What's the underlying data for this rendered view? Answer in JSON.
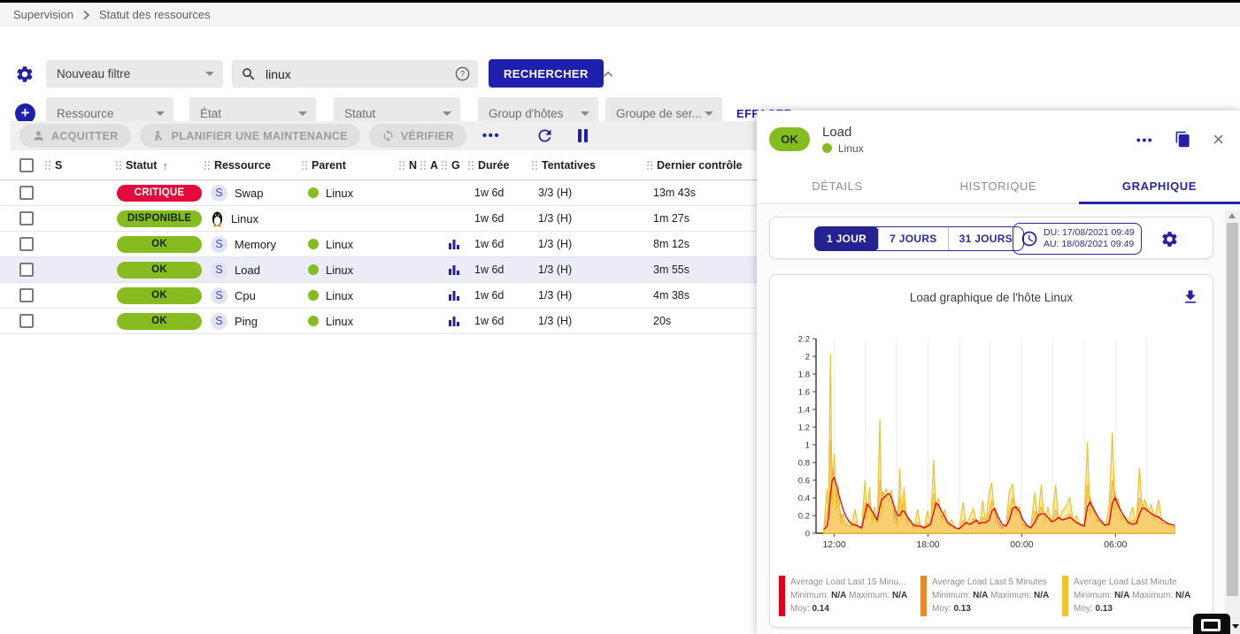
{
  "breadcrumb": {
    "items": [
      "Supervision",
      "Statut des ressources"
    ]
  },
  "filters": {
    "saved_filter_label": "Nouveau filtre",
    "search_value": "linux",
    "search_button": "RECHERCHER",
    "criteria": [
      "Ressource",
      "État",
      "Statut",
      "Group d'hôtes",
      "Groupe de ser..."
    ],
    "clear_button": "EFFACER"
  },
  "toolbar": {
    "acknowledge": "ACQUITTER",
    "downtime": "PLANIFIER UNE MAINTENANCE",
    "check": "VÉRIFIER",
    "more_icon": "•••"
  },
  "table": {
    "headers": [
      "S",
      "Statut",
      "Ressource",
      "Parent",
      "N",
      "A",
      "G",
      "Durée",
      "Tentatives",
      "Dernier contrôle"
    ],
    "sorted_column": "Statut",
    "sort_icon": "↑",
    "rows": [
      {
        "status": "CRITIQUE",
        "status_bg": "#e30b3c",
        "status_fg": "#ffffff",
        "icon": "service",
        "resource": "Swap",
        "parent": "Linux",
        "graph": false,
        "duration": "1w 6d",
        "tries": "3/3 (H)",
        "last_check": "13m 43s",
        "selected": false
      },
      {
        "status": "DISPONIBLE",
        "status_bg": "#87bc21",
        "status_fg": "#16230a",
        "icon": "host",
        "resource": "Linux",
        "parent": "",
        "graph": false,
        "duration": "1w 6d",
        "tries": "1/3 (H)",
        "last_check": "1m 27s",
        "selected": false
      },
      {
        "status": "OK",
        "status_bg": "#87bc21",
        "status_fg": "#16230a",
        "icon": "service",
        "resource": "Memory",
        "parent": "Linux",
        "graph": true,
        "duration": "1w 6d",
        "tries": "1/3 (H)",
        "last_check": "8m 12s",
        "selected": false
      },
      {
        "status": "OK",
        "status_bg": "#87bc21",
        "status_fg": "#16230a",
        "icon": "service",
        "resource": "Load",
        "parent": "Linux",
        "graph": true,
        "duration": "1w 6d",
        "tries": "1/3 (H)",
        "last_check": "3m 55s",
        "selected": true
      },
      {
        "status": "OK",
        "status_bg": "#87bc21",
        "status_fg": "#16230a",
        "icon": "service",
        "resource": "Cpu",
        "parent": "Linux",
        "graph": true,
        "duration": "1w 6d",
        "tries": "1/3 (H)",
        "last_check": "4m 38s",
        "selected": false
      },
      {
        "status": "OK",
        "status_bg": "#87bc21",
        "status_fg": "#16230a",
        "icon": "service",
        "resource": "Ping",
        "parent": "Linux",
        "graph": true,
        "duration": "1w 6d",
        "tries": "1/3 (H)",
        "last_check": "20s",
        "selected": false
      }
    ]
  },
  "panel": {
    "status_chip": "OK",
    "title": "Load",
    "subtitle": "Linux",
    "tabs": [
      "DÉTAILS",
      "HISTORIQUE",
      "GRAPHIQUE"
    ],
    "active_tab": 2,
    "time_buttons": [
      "1 JOUR",
      "7 JOURS",
      "31 JOURS"
    ],
    "active_time_button": 0,
    "date_from": "DU: 17/08/2021 09:49",
    "date_to": "AU: 18/08/2021 09:49"
  },
  "colors": {
    "primary": "#1e1fad",
    "ok_green": "#87bc21",
    "critical_red": "#e30b3c",
    "selected_row": "#ecebf8"
  },
  "chart_data": {
    "type": "area",
    "title": "Load graphique de l'hôte Linux",
    "ylim": [
      0,
      2.2
    ],
    "y_ticks": [
      0,
      0.2,
      0.4,
      0.6,
      0.8,
      1,
      1.2,
      1.4,
      1.6,
      1.8,
      2,
      2.2
    ],
    "x_range_minutes": [
      0,
      1380
    ],
    "x_tick_minutes": [
      70,
      430,
      790,
      1150
    ],
    "x_tick_labels": [
      "12:00",
      "18:00",
      "00:00",
      "06:00"
    ],
    "grid_start_minute": 70,
    "grid_step_minutes": 120,
    "legend_labels": {
      "min": "Minimum:",
      "max": "Maximum:",
      "avg": "Moy:"
    },
    "series": [
      {
        "name": "Average Load Last 15 Minu...",
        "color": "#e3001b",
        "kind": "line",
        "fill": "none",
        "col": 3,
        "minimum": "N/A",
        "maximum": "N/A",
        "moyenne": "0.14"
      },
      {
        "name": "Average Load Last 5 Minutes",
        "color": "#e8892c",
        "kind": "area",
        "fill": "rgba(243,185,120,0.9)",
        "col": 2,
        "minimum": "N/A",
        "maximum": "N/A",
        "moyenne": "0.13"
      },
      {
        "name": "Average Load Last Minute",
        "color": "#edc32b",
        "kind": "area",
        "fill": "rgba(250,219,96,0.55)",
        "col": 1,
        "minimum": "N/A",
        "maximum": "N/A",
        "moyenne": "0.13"
      }
    ],
    "point_columns": [
      "minute",
      "load_last_minute",
      "load_last_5_minutes",
      "load_last_15_minutes"
    ],
    "points": [
      [
        30,
        0.04,
        0.04,
        0.04
      ],
      [
        42,
        0.5,
        0.22,
        0.08
      ],
      [
        48,
        0.14,
        0.28,
        0.18
      ],
      [
        55,
        2.03,
        1.05,
        0.42
      ],
      [
        62,
        0.3,
        0.72,
        0.6
      ],
      [
        70,
        0.9,
        0.58,
        0.63
      ],
      [
        78,
        0.25,
        0.45,
        0.55
      ],
      [
        85,
        0.55,
        0.36,
        0.46
      ],
      [
        95,
        0.1,
        0.22,
        0.36
      ],
      [
        105,
        0.22,
        0.13,
        0.26
      ],
      [
        115,
        0.08,
        0.1,
        0.19
      ],
      [
        125,
        0.15,
        0.09,
        0.14
      ],
      [
        138,
        0.1,
        0.08,
        0.1
      ],
      [
        150,
        0.27,
        0.12,
        0.09
      ],
      [
        162,
        0.06,
        0.07,
        0.08
      ],
      [
        175,
        0.05,
        0.05,
        0.06
      ],
      [
        188,
        0.6,
        0.34,
        0.22
      ],
      [
        196,
        0.15,
        0.3,
        0.33
      ],
      [
        205,
        0.52,
        0.34,
        0.3
      ],
      [
        215,
        0.1,
        0.2,
        0.25
      ],
      [
        225,
        0.3,
        0.18,
        0.2
      ],
      [
        235,
        0.1,
        0.12,
        0.15
      ],
      [
        245,
        1.29,
        0.6,
        0.3
      ],
      [
        252,
        0.2,
        0.46,
        0.38
      ],
      [
        260,
        0.45,
        0.4,
        0.4
      ],
      [
        270,
        0.5,
        0.42,
        0.43
      ],
      [
        280,
        0.35,
        0.38,
        0.45
      ],
      [
        290,
        0.49,
        0.35,
        0.4
      ],
      [
        300,
        0.12,
        0.25,
        0.3
      ],
      [
        312,
        0.08,
        0.13,
        0.2
      ],
      [
        322,
        0.73,
        0.4,
        0.2
      ],
      [
        330,
        0.15,
        0.3,
        0.25
      ],
      [
        338,
        0.52,
        0.34,
        0.25
      ],
      [
        348,
        0.12,
        0.2,
        0.2
      ],
      [
        360,
        0.14,
        0.12,
        0.15
      ],
      [
        375,
        0.05,
        0.07,
        0.09
      ],
      [
        390,
        0.27,
        0.12,
        0.08
      ],
      [
        402,
        0.06,
        0.08,
        0.08
      ],
      [
        415,
        0.05,
        0.05,
        0.06
      ],
      [
        428,
        0.25,
        0.12,
        0.08
      ],
      [
        440,
        0.1,
        0.1,
        0.1
      ],
      [
        452,
        0.83,
        0.45,
        0.24
      ],
      [
        460,
        0.25,
        0.36,
        0.34
      ],
      [
        470,
        0.4,
        0.3,
        0.32
      ],
      [
        482,
        0.12,
        0.2,
        0.25
      ],
      [
        495,
        0.27,
        0.15,
        0.18
      ],
      [
        506,
        0.08,
        0.1,
        0.12
      ],
      [
        520,
        0.15,
        0.08,
        0.09
      ],
      [
        535,
        0.06,
        0.06,
        0.06
      ],
      [
        550,
        0.05,
        0.05,
        0.05
      ],
      [
        565,
        0.35,
        0.15,
        0.09
      ],
      [
        576,
        0.1,
        0.12,
        0.12
      ],
      [
        590,
        0.18,
        0.1,
        0.1
      ],
      [
        604,
        0.28,
        0.17,
        0.12
      ],
      [
        616,
        0.12,
        0.14,
        0.15
      ],
      [
        628,
        0.08,
        0.09,
        0.11
      ],
      [
        640,
        0.37,
        0.18,
        0.12
      ],
      [
        652,
        0.1,
        0.12,
        0.12
      ],
      [
        665,
        0.46,
        0.25,
        0.15
      ],
      [
        675,
        0.57,
        0.36,
        0.25
      ],
      [
        686,
        0.15,
        0.26,
        0.28
      ],
      [
        700,
        0.08,
        0.13,
        0.18
      ],
      [
        715,
        0.05,
        0.07,
        0.1
      ],
      [
        730,
        0.1,
        0.08,
        0.08
      ],
      [
        742,
        0.47,
        0.26,
        0.15
      ],
      [
        755,
        0.55,
        0.4,
        0.28
      ],
      [
        768,
        0.2,
        0.28,
        0.3
      ],
      [
        780,
        0.3,
        0.2,
        0.25
      ],
      [
        795,
        0.08,
        0.11,
        0.15
      ],
      [
        810,
        0.05,
        0.07,
        0.09
      ],
      [
        825,
        0.08,
        0.06,
        0.06
      ],
      [
        840,
        0.46,
        0.25,
        0.12
      ],
      [
        852,
        0.15,
        0.2,
        0.2
      ],
      [
        865,
        0.55,
        0.3,
        0.22
      ],
      [
        878,
        0.12,
        0.2,
        0.22
      ],
      [
        890,
        0.3,
        0.18,
        0.18
      ],
      [
        905,
        0.1,
        0.11,
        0.13
      ],
      [
        920,
        0.55,
        0.26,
        0.15
      ],
      [
        932,
        0.12,
        0.18,
        0.18
      ],
      [
        945,
        0.25,
        0.15,
        0.15
      ],
      [
        960,
        0.3,
        0.18,
        0.16
      ],
      [
        975,
        0.4,
        0.22,
        0.18
      ],
      [
        988,
        0.12,
        0.15,
        0.15
      ],
      [
        1000,
        0.2,
        0.12,
        0.12
      ],
      [
        1015,
        0.08,
        0.08,
        0.1
      ],
      [
        1030,
        0.1,
        0.08,
        0.08
      ],
      [
        1042,
        1.03,
        0.55,
        0.3
      ],
      [
        1052,
        0.2,
        0.4,
        0.35
      ],
      [
        1065,
        0.3,
        0.25,
        0.28
      ],
      [
        1080,
        0.12,
        0.16,
        0.2
      ],
      [
        1095,
        0.15,
        0.1,
        0.13
      ],
      [
        1110,
        0.08,
        0.08,
        0.09
      ],
      [
        1125,
        0.3,
        0.15,
        0.1
      ],
      [
        1138,
        1.14,
        0.6,
        0.34
      ],
      [
        1148,
        0.25,
        0.45,
        0.4
      ],
      [
        1160,
        0.4,
        0.3,
        0.32
      ],
      [
        1172,
        0.15,
        0.2,
        0.25
      ],
      [
        1185,
        0.2,
        0.15,
        0.18
      ],
      [
        1200,
        0.12,
        0.1,
        0.12
      ],
      [
        1215,
        0.3,
        0.15,
        0.1
      ],
      [
        1230,
        0.1,
        0.12,
        0.11
      ],
      [
        1242,
        0.74,
        0.4,
        0.22
      ],
      [
        1252,
        0.28,
        0.32,
        0.28
      ],
      [
        1262,
        0.38,
        0.3,
        0.28
      ],
      [
        1275,
        0.25,
        0.25,
        0.25
      ],
      [
        1288,
        0.32,
        0.22,
        0.22
      ],
      [
        1300,
        0.15,
        0.18,
        0.2
      ],
      [
        1315,
        0.38,
        0.2,
        0.18
      ],
      [
        1330,
        0.1,
        0.12,
        0.15
      ],
      [
        1345,
        0.12,
        0.1,
        0.12
      ],
      [
        1360,
        0.08,
        0.08,
        0.1
      ],
      [
        1378,
        0.06,
        0.07,
        0.09
      ]
    ]
  }
}
